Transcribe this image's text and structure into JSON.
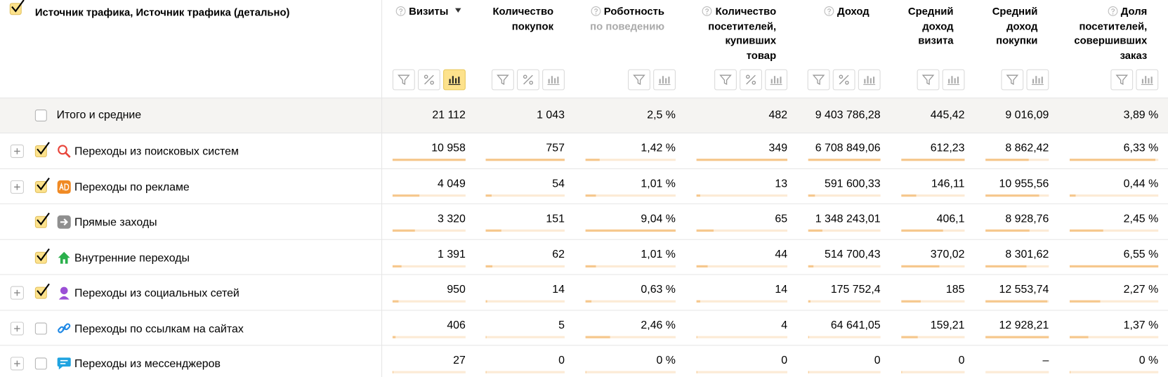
{
  "header": {
    "first_column": "Источник трафика, Источник трафика (детально)",
    "columns": [
      {
        "title_lines": [
          "Визиты"
        ]
      },
      {
        "title_lines": [
          "Количество",
          "покупок"
        ]
      },
      {
        "title_lines": [
          "Роботность"
        ],
        "subtitle": "по поведению"
      },
      {
        "title_lines": [
          "Количество",
          "посетителей,",
          "купивших",
          "товар"
        ]
      },
      {
        "title_lines": [
          "Доход"
        ]
      },
      {
        "title_lines": [
          "Средний",
          "доход",
          "визита"
        ]
      },
      {
        "title_lines": [
          "Средний",
          "доход",
          "покупки"
        ]
      },
      {
        "title_lines": [
          "Доля",
          "посетителей,",
          "совершивших",
          "заказ"
        ]
      }
    ]
  },
  "table": {
    "total": {
      "label": "Итого и средние",
      "cells": [
        "21 112",
        "1 043",
        "2,5 %",
        "482",
        "9 403 786,28",
        "445,42",
        "9 016,09",
        "3,89 %"
      ]
    },
    "rows": [
      {
        "label": "Переходы из поисковых систем",
        "cells": [
          "10 958",
          "757",
          "1,42 %",
          "349",
          "6 708 849,06",
          "612,23",
          "8 862,42",
          "6,33 %"
        ]
      },
      {
        "label": "Переходы по рекламе",
        "cells": [
          "4 049",
          "54",
          "1,01 %",
          "13",
          "591 600,33",
          "146,11",
          "10 955,56",
          "0,44 %"
        ]
      },
      {
        "label": "Прямые заходы",
        "cells": [
          "3 320",
          "151",
          "9,04 %",
          "65",
          "1 348 243,01",
          "406,1",
          "8 928,76",
          "2,45 %"
        ]
      },
      {
        "label": "Внутренние переходы",
        "cells": [
          "1 391",
          "62",
          "1,01 %",
          "44",
          "514 700,43",
          "370,02",
          "8 301,62",
          "6,55 %"
        ]
      },
      {
        "label": "Переходы из социальных сетей",
        "cells": [
          "950",
          "14",
          "0,63 %",
          "14",
          "175 752,4",
          "185",
          "12 553,74",
          "2,27 %"
        ]
      },
      {
        "label": "Переходы по ссылкам на сайтах",
        "cells": [
          "406",
          "5",
          "2,46 %",
          "4",
          "64 641,05",
          "159,21",
          "12 928,21",
          "1,37 %"
        ]
      },
      {
        "label": "Переходы из мессенджеров",
        "cells": [
          "27",
          "0",
          "0 %",
          "0",
          "0",
          "0",
          "–",
          "0 %"
        ]
      }
    ]
  }
}
